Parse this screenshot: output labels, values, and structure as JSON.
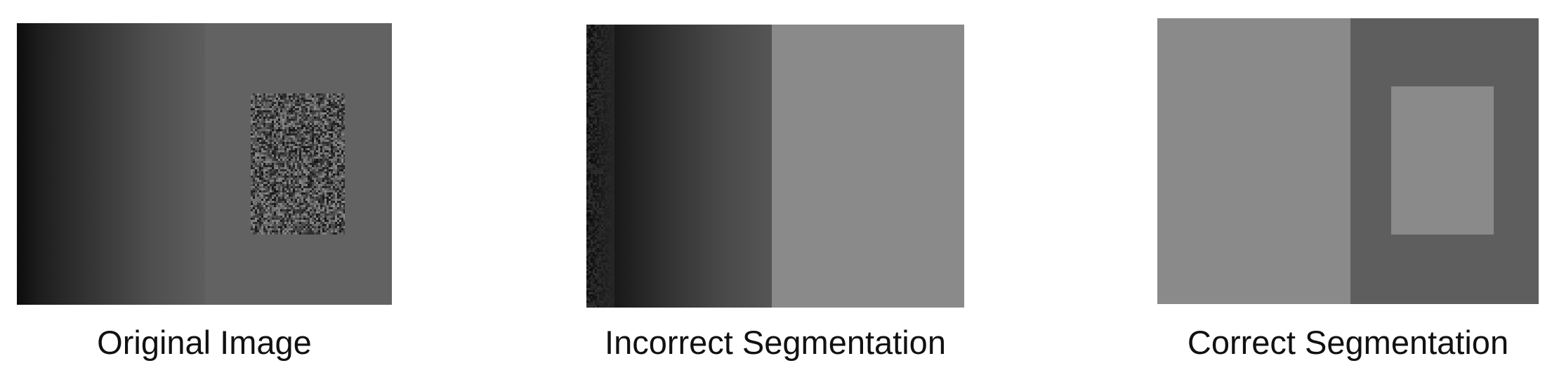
{
  "panels": [
    {
      "caption": "Original Image"
    },
    {
      "caption": "Incorrect Segmentation"
    },
    {
      "caption": "Correct Segmentation"
    }
  ],
  "colors": {
    "background": "#ffffff",
    "dark_edge": "#0c0c0c",
    "gradient_end": "#5d5d5d",
    "mid_gray": "#626262",
    "light_gray": "#8a8a8a",
    "dark_gray": "#5e5e5e"
  }
}
